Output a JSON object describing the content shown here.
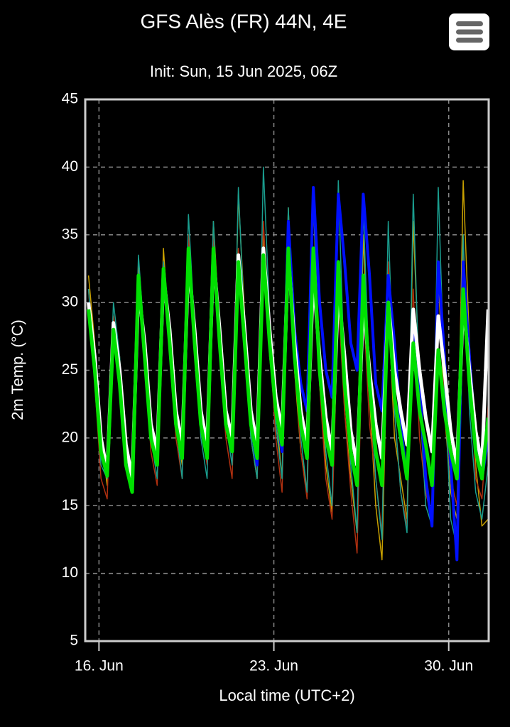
{
  "chart_data": {
    "type": "line",
    "title": "GFS Alès (FR) 44N, 4E",
    "subtitle": "Init: Sun, 15 Jun 2025, 06Z",
    "y_label": "2m Temp. (°C)",
    "x_label": "Local time (UTC+2)",
    "xlim": [
      15.45,
      31.6
    ],
    "xticks": [
      {
        "value": 16,
        "label": "16. Jun"
      },
      {
        "value": 23,
        "label": "23. Jun"
      },
      {
        "value": 30,
        "label": "30. Jun"
      }
    ],
    "ylim": [
      5,
      45
    ],
    "yticks": [
      5,
      10,
      15,
      20,
      25,
      30,
      35,
      40,
      45
    ],
    "grid": true,
    "x": [
      15.58,
      15.83,
      16.08,
      16.33,
      16.58,
      16.83,
      17.08,
      17.33,
      17.58,
      17.83,
      18.08,
      18.33,
      18.58,
      18.83,
      19.08,
      19.33,
      19.58,
      19.83,
      20.08,
      20.33,
      20.58,
      20.83,
      21.08,
      21.33,
      21.58,
      21.83,
      22.08,
      22.33,
      22.58,
      22.83,
      23.08,
      23.33,
      23.58,
      23.83,
      24.08,
      24.33,
      24.58,
      24.83,
      25.08,
      25.33,
      25.58,
      25.83,
      26.08,
      26.33,
      26.58,
      26.83,
      27.08,
      27.33,
      27.58,
      27.83,
      28.08,
      28.33,
      28.58,
      28.83,
      29.08,
      29.33,
      29.58,
      29.83,
      30.08,
      30.33,
      30.58,
      30.83,
      31.08,
      31.33,
      31.58
    ],
    "series": [
      {
        "color": "#c8a000",
        "width": 1.5,
        "values": [
          32,
          27,
          20,
          16.5,
          29,
          24,
          19,
          16,
          33,
          27,
          21,
          18,
          34,
          27,
          21,
          18,
          35,
          28,
          22,
          19,
          36,
          28,
          22,
          19,
          38,
          29,
          20,
          17,
          35,
          26,
          22,
          17,
          37,
          25,
          19,
          16,
          38,
          24,
          18,
          14.5,
          33,
          22,
          17,
          13,
          35,
          23,
          15,
          11,
          30,
          20,
          17,
          14,
          36,
          24,
          16,
          14,
          32,
          22,
          16,
          14,
          39,
          27,
          18,
          13.5,
          14
        ]
      },
      {
        "color": "#b03010",
        "width": 1.5,
        "values": [
          31,
          24,
          17,
          15.5,
          29,
          26,
          18,
          16.5,
          32,
          26,
          19,
          16.5,
          33,
          26,
          20,
          17,
          35,
          27,
          21,
          18,
          35,
          26,
          20,
          17,
          34,
          27,
          21,
          17,
          36,
          27,
          20,
          16,
          35,
          26,
          19,
          15.5,
          33,
          24,
          17,
          14,
          30,
          22,
          16,
          11.5,
          30,
          21,
          17,
          13,
          33,
          22,
          16,
          13.5,
          31,
          20,
          16,
          14,
          33,
          23,
          17,
          15,
          34,
          26,
          17,
          15.5,
          22.5
        ]
      },
      {
        "color": "#1a9e8f",
        "width": 1.5,
        "values": [
          31,
          25,
          18,
          17,
          30,
          26,
          18,
          16.5,
          33.5,
          27,
          20,
          17,
          33,
          27,
          21,
          17,
          36.5,
          28,
          20,
          17,
          36,
          27,
          21,
          18,
          38.5,
          28,
          20,
          17,
          40,
          29,
          21,
          17,
          37,
          26,
          20,
          16,
          38,
          25,
          19,
          15,
          39,
          24,
          18,
          13,
          37,
          24,
          17,
          12.5,
          36,
          22,
          16,
          13,
          38,
          23,
          15,
          13.5,
          38.5,
          24,
          14,
          12,
          35,
          22,
          16,
          14,
          18
        ]
      },
      {
        "color": "#0010ff",
        "width": 4,
        "values": [
          30,
          26,
          20,
          17.5,
          28.5,
          25,
          19.5,
          16.5,
          31,
          27,
          21,
          18.5,
          32,
          28,
          22,
          19.5,
          33.5,
          28,
          22,
          19.5,
          33.5,
          28,
          21,
          19.5,
          33,
          28,
          21,
          18,
          34,
          28,
          22,
          19,
          36,
          28,
          24,
          22,
          38.5,
          30,
          25,
          23,
          38,
          33,
          27,
          25,
          38,
          32,
          24,
          22,
          32,
          27,
          21,
          17,
          29,
          24,
          17,
          13.5,
          33,
          26,
          18,
          11,
          33,
          26,
          20,
          17,
          20
        ]
      },
      {
        "color": "#ffffff",
        "width": 5,
        "values": [
          30,
          26,
          20,
          17.5,
          28.5,
          25,
          19.5,
          17,
          31,
          27,
          21,
          19,
          32,
          28,
          22,
          19.5,
          33,
          28,
          22,
          19.5,
          33.5,
          28,
          22,
          20,
          33.5,
          28,
          22,
          19.5,
          34,
          28,
          23,
          20.5,
          33.5,
          27,
          22,
          19.5,
          32,
          26,
          21.5,
          19,
          31,
          26,
          20.5,
          18,
          30,
          25,
          21,
          18.5,
          30,
          25,
          22,
          19.5,
          29.5,
          25,
          21.5,
          19,
          29,
          25,
          20.5,
          18,
          30,
          25,
          20.5,
          18,
          29.5
        ]
      },
      {
        "color": "#00e000",
        "width": 5,
        "values": [
          29.5,
          25,
          19,
          17.2,
          28,
          24,
          18,
          16,
          32,
          26,
          20,
          18,
          32.5,
          27,
          21,
          18.5,
          34,
          27,
          21,
          18.5,
          34,
          27,
          21,
          19,
          33,
          27,
          21,
          18.5,
          33.5,
          27,
          22,
          19.5,
          34,
          26,
          21,
          18.5,
          34,
          25,
          20,
          18,
          33,
          24,
          19,
          16.5,
          32,
          24,
          19,
          16.5,
          30,
          23,
          20,
          17,
          27,
          22,
          19.5,
          16.5,
          26.5,
          22,
          19,
          17,
          31,
          24,
          19,
          17,
          21.5
        ]
      }
    ]
  }
}
